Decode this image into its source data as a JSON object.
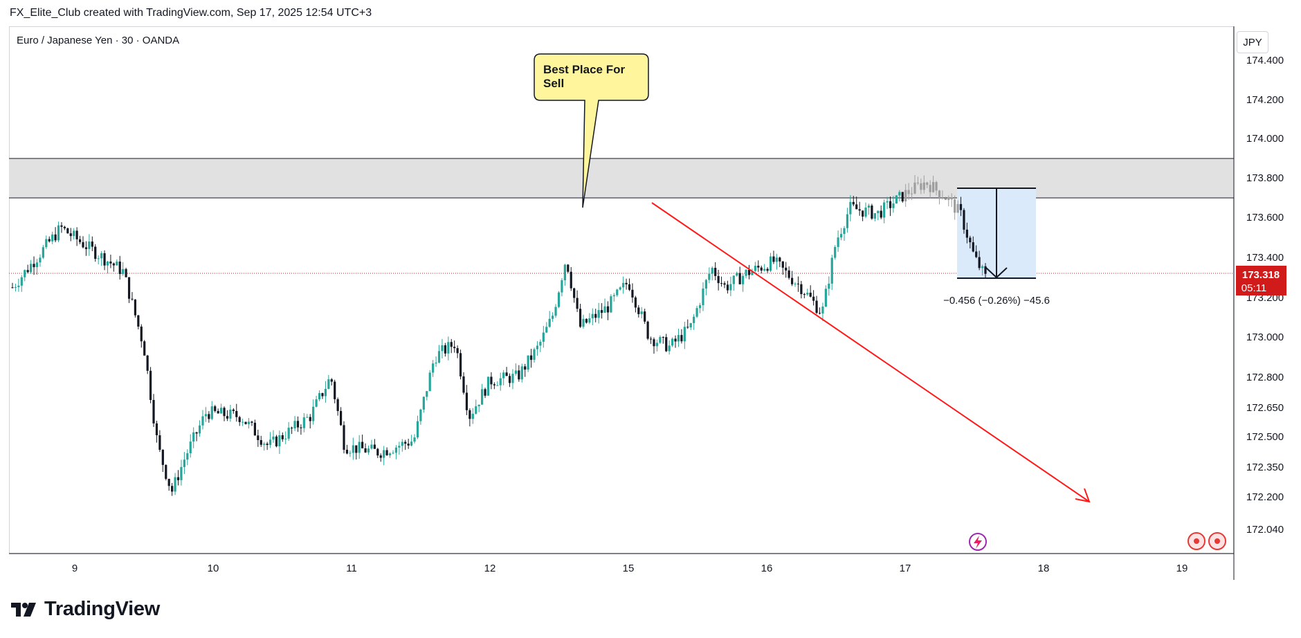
{
  "header": {
    "attribution": "FX_Elite_Club created with TradingView.com, Sep 17, 2025 12:54 UTC+3"
  },
  "chart_title": "Euro / Japanese Yen · 30 · OANDA",
  "currency": "JPY",
  "brand": "TradingView",
  "colors": {
    "up": "#26a69a",
    "down": "#000000",
    "current_price_bg": "#d11b1b",
    "trendline": "#ff1a1a",
    "zone_fill": "#e1e1e1",
    "measure_fill": "#dbeafb"
  },
  "annotations": {
    "callout": "Best Place For Sell",
    "callout_line1": "Best Place For",
    "callout_line2": "Sell",
    "measure": "−0.456 (−0.26%) −45.6"
  },
  "current_price": {
    "value": "173.318",
    "timer": "05:11"
  },
  "icons": [
    "lightning-icon",
    "record-icon"
  ],
  "chart_data": {
    "type": "candlestick",
    "title": "Euro / Japanese Yen · 30 · OANDA",
    "xlabel": "",
    "ylabel": "",
    "x_ticks": [
      "9",
      "10",
      "11",
      "12",
      "15",
      "16",
      "17",
      "18",
      "19"
    ],
    "y_ticks": [
      "174.400",
      "174.200",
      "174.000",
      "173.800",
      "173.600",
      "173.400",
      "173.200",
      "173.000",
      "172.800",
      "172.650",
      "172.500",
      "172.350",
      "172.200",
      "172.040"
    ],
    "y_tick_values": [
      174.4,
      174.2,
      174.0,
      173.8,
      173.6,
      173.4,
      173.2,
      173.0,
      172.8,
      172.65,
      172.5,
      172.35,
      172.2,
      172.04
    ],
    "ylim": [
      171.9,
      174.45
    ],
    "sell_zone": {
      "low": 173.7,
      "high": 173.9
    },
    "current_price": 173.318,
    "trendline": {
      "start": [
        "15",
        173.68
      ],
      "end": [
        "18 ~ 19",
        172.18
      ],
      "arrow": true
    },
    "measure": {
      "from": 173.75,
      "to": 173.29,
      "change": -0.456,
      "percent": -0.26,
      "pips": -45.6
    },
    "close_path": [
      {
        "day": 8.55,
        "close": 173.25
      },
      {
        "day": 8.9,
        "close": 173.55
      },
      {
        "day": 9.1,
        "close": 173.45
      },
      {
        "day": 9.35,
        "close": 173.33
      },
      {
        "day": 9.5,
        "close": 172.95
      },
      {
        "day": 9.6,
        "close": 172.45
      },
      {
        "day": 9.7,
        "close": 172.22
      },
      {
        "day": 9.8,
        "close": 172.4
      },
      {
        "day": 9.95,
        "close": 172.62
      },
      {
        "day": 10.2,
        "close": 172.6
      },
      {
        "day": 10.4,
        "close": 172.45
      },
      {
        "day": 10.7,
        "close": 172.6
      },
      {
        "day": 10.85,
        "close": 172.8
      },
      {
        "day": 10.95,
        "close": 172.45
      },
      {
        "day": 11.2,
        "close": 172.42
      },
      {
        "day": 11.45,
        "close": 172.48
      },
      {
        "day": 11.6,
        "close": 172.9
      },
      {
        "day": 11.75,
        "close": 172.97
      },
      {
        "day": 11.85,
        "close": 172.6
      },
      {
        "day": 12.0,
        "close": 172.78
      },
      {
        "day": 12.2,
        "close": 172.8
      },
      {
        "day": 12.35,
        "close": 172.95
      },
      {
        "day": 12.45,
        "close": 173.1
      },
      {
        "day": 12.55,
        "close": 173.4
      },
      {
        "day": 12.65,
        "close": 173.05
      },
      {
        "day": 12.85,
        "close": 173.15
      },
      {
        "day": 13.0,
        "close": 173.28
      },
      {
        "day": 13.15,
        "close": 173.0
      },
      {
        "day": 13.3,
        "close": 172.95
      },
      {
        "day": 13.45,
        "close": 173.05
      },
      {
        "day": 13.6,
        "close": 173.35
      },
      {
        "day": 13.7,
        "close": 173.25
      },
      {
        "day": 13.85,
        "close": 173.32
      },
      {
        "day": 14.05,
        "close": 173.38
      },
      {
        "day": 14.25,
        "close": 173.25
      },
      {
        "day": 14.4,
        "close": 173.12
      },
      {
        "day": 14.5,
        "close": 173.48
      },
      {
        "day": 14.6,
        "close": 173.65
      },
      {
        "day": 14.8,
        "close": 173.62
      },
      {
        "day": 15.0,
        "close": 173.72
      },
      {
        "day": 15.15,
        "close": 173.78
      },
      {
        "day": 15.3,
        "close": 173.7
      },
      {
        "day": 15.4,
        "close": 173.62
      },
      {
        "day": 15.5,
        "close": 173.4
      },
      {
        "day": 15.58,
        "close": 173.3
      }
    ]
  }
}
